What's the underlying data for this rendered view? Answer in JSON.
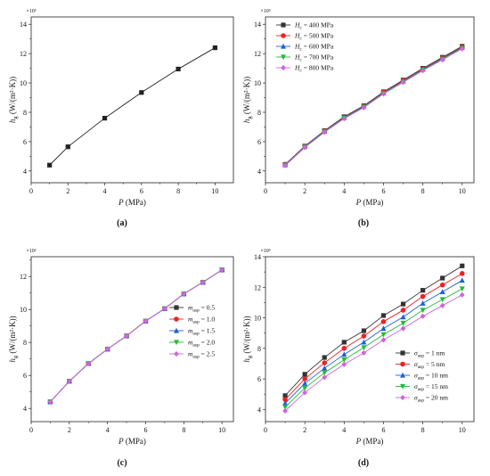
{
  "chart_data": [
    {
      "id": "a",
      "type": "line",
      "caption": "(a)",
      "exponent_label": "×10³",
      "xlabel_sym": "P",
      "xlabel_unit": " (MPa)",
      "ylabel_sym": "h",
      "ylabel_sub": "g",
      "ylabel_unit": " (W/(m²·K))",
      "xlim": [
        0,
        11
      ],
      "ylim": [
        3.2,
        14.5
      ],
      "xticks": [
        0,
        2,
        4,
        6,
        8,
        10
      ],
      "yticks": [
        4,
        6,
        8,
        10,
        12,
        14
      ],
      "legend": "none",
      "series": [
        {
          "name": "",
          "color": "#222222",
          "marker": "square",
          "x": [
            1,
            2,
            4,
            6,
            8,
            10
          ],
          "y": [
            4.4,
            5.65,
            7.6,
            9.35,
            10.95,
            12.4
          ]
        }
      ]
    },
    {
      "id": "b",
      "type": "line",
      "caption": "(b)",
      "exponent_label": "×10³",
      "xlabel_sym": "P",
      "xlabel_unit": " (MPa)",
      "ylabel_sym": "h",
      "ylabel_sub": "g",
      "ylabel_unit": " (W/(m²·K))",
      "xlim": [
        0,
        10.6
      ],
      "ylim": [
        3.2,
        14.5
      ],
      "xticks": [
        0,
        2,
        4,
        6,
        8,
        10
      ],
      "yticks": [
        4,
        6,
        8,
        10,
        12,
        14
      ],
      "legend": "top-left",
      "series": [
        {
          "name_sym": "H",
          "name_sub": "c",
          "name_rest": " = 400 MPa",
          "color": "#333333",
          "marker": "square",
          "x": [
            1,
            2,
            3,
            4,
            5,
            6,
            7,
            8,
            9,
            10
          ],
          "y": [
            4.45,
            5.7,
            6.75,
            7.7,
            8.45,
            9.4,
            10.2,
            11.0,
            11.75,
            12.5
          ]
        },
        {
          "name_sym": "H",
          "name_sub": "c",
          "name_rest": " = 500 MPa",
          "color": "#ee2222",
          "marker": "circle",
          "x": [
            1,
            2,
            3,
            4,
            5,
            6,
            7,
            8,
            9,
            10
          ],
          "y": [
            4.43,
            5.68,
            6.72,
            7.66,
            8.42,
            9.36,
            10.16,
            10.96,
            11.7,
            12.45
          ]
        },
        {
          "name_sym": "H",
          "name_sub": "c",
          "name_rest": " = 600 MPa",
          "color": "#1f5fd6",
          "marker": "triangle-up",
          "x": [
            1,
            2,
            3,
            4,
            5,
            6,
            7,
            8,
            9,
            10
          ],
          "y": [
            4.41,
            5.66,
            6.7,
            7.63,
            8.39,
            9.32,
            10.12,
            10.92,
            11.66,
            12.41
          ]
        },
        {
          "name_sym": "H",
          "name_sub": "c",
          "name_rest": " = 700 MPa",
          "color": "#22bb33",
          "marker": "triangle-down",
          "x": [
            1,
            2,
            3,
            4,
            5,
            6,
            7,
            8,
            9,
            10
          ],
          "y": [
            4.39,
            5.63,
            6.67,
            7.6,
            8.36,
            9.29,
            10.08,
            10.88,
            11.62,
            12.37
          ]
        },
        {
          "name_sym": "H",
          "name_sub": "c",
          "name_rest": " = 800 MPa",
          "color": "#cc66dd",
          "marker": "diamond",
          "x": [
            1,
            2,
            3,
            4,
            5,
            6,
            7,
            8,
            9,
            10
          ],
          "y": [
            4.37,
            5.6,
            6.64,
            7.57,
            8.32,
            9.25,
            10.04,
            10.84,
            11.58,
            12.33
          ]
        }
      ]
    },
    {
      "id": "c",
      "type": "line",
      "caption": "(c)",
      "exponent_label": "×10³",
      "xlabel_sym": "P",
      "xlabel_unit": " (MPa)",
      "ylabel_sym": "h",
      "ylabel_sub": "g",
      "ylabel_unit": " (W/(m²·K))",
      "xlim": [
        0,
        10.6
      ],
      "ylim": [
        3.2,
        13.2
      ],
      "xticks": [
        0,
        2,
        4,
        6,
        8,
        10
      ],
      "yticks": [
        4,
        6,
        8,
        10,
        12
      ],
      "legend": "right-center",
      "series": [
        {
          "name_sym": "m",
          "name_sub": "asp",
          "name_rest": " = 0.5",
          "color": "#333333",
          "marker": "square",
          "x": [
            1,
            2,
            3,
            4,
            5,
            6,
            7,
            8,
            9,
            10
          ],
          "y": [
            4.4,
            5.65,
            6.72,
            7.6,
            8.4,
            9.3,
            10.05,
            10.95,
            11.65,
            12.4
          ]
        },
        {
          "name_sym": "m",
          "name_sub": "asp",
          "name_rest": " = 1.0",
          "color": "#ee2222",
          "marker": "circle",
          "x": [
            1,
            2,
            3,
            4,
            5,
            6,
            7,
            8,
            9,
            10
          ],
          "y": [
            4.4,
            5.65,
            6.72,
            7.6,
            8.4,
            9.3,
            10.05,
            10.95,
            11.65,
            12.4
          ]
        },
        {
          "name_sym": "m",
          "name_sub": "asp",
          "name_rest": " = 1.5",
          "color": "#1f5fd6",
          "marker": "triangle-up",
          "x": [
            1,
            2,
            3,
            4,
            5,
            6,
            7,
            8,
            9,
            10
          ],
          "y": [
            4.4,
            5.65,
            6.72,
            7.6,
            8.4,
            9.3,
            10.05,
            10.95,
            11.65,
            12.4
          ]
        },
        {
          "name_sym": "m",
          "name_sub": "asp",
          "name_rest": " = 2.0",
          "color": "#22bb33",
          "marker": "triangle-down",
          "x": [
            1,
            2,
            3,
            4,
            5,
            6,
            7,
            8,
            9,
            10
          ],
          "y": [
            4.4,
            5.65,
            6.72,
            7.6,
            8.4,
            9.3,
            10.05,
            10.95,
            11.65,
            12.4
          ]
        },
        {
          "name_sym": "m",
          "name_sub": "asp",
          "name_rest": " = 2.5",
          "color": "#cc66dd",
          "marker": "diamond",
          "x": [
            1,
            2,
            3,
            4,
            5,
            6,
            7,
            8,
            9,
            10
          ],
          "y": [
            4.4,
            5.65,
            6.72,
            7.6,
            8.4,
            9.3,
            10.05,
            10.95,
            11.65,
            12.4
          ]
        }
      ]
    },
    {
      "id": "d",
      "type": "line",
      "caption": "(d)",
      "exponent_label": "×10³",
      "xlabel_sym": "P",
      "xlabel_unit": " (MPa)",
      "ylabel_sym": "h",
      "ylabel_sub": "g",
      "ylabel_unit": " (W/(m²·K))",
      "xlim": [
        0,
        10.6
      ],
      "ylim": [
        3.2,
        14.0
      ],
      "xticks": [
        0,
        2,
        4,
        6,
        8,
        10
      ],
      "yticks": [
        4,
        6,
        8,
        10,
        12,
        14
      ],
      "legend": "bottom-right",
      "series": [
        {
          "name_sym": "σ",
          "name_sub": "asp",
          "name_rest": " = 1 nm",
          "color": "#333333",
          "marker": "square",
          "x": [
            1,
            2,
            3,
            4,
            5,
            6,
            7,
            8,
            9,
            10
          ],
          "y": [
            4.9,
            6.3,
            7.4,
            8.4,
            9.15,
            10.15,
            10.9,
            11.8,
            12.6,
            13.4
          ]
        },
        {
          "name_sym": "σ",
          "name_sub": "asp",
          "name_rest": " = 5 nm",
          "color": "#ee2222",
          "marker": "circle",
          "x": [
            1,
            2,
            3,
            4,
            5,
            6,
            7,
            8,
            9,
            10
          ],
          "y": [
            4.65,
            6.0,
            7.05,
            8.0,
            8.8,
            9.75,
            10.5,
            11.4,
            12.15,
            12.9
          ]
        },
        {
          "name_sym": "σ",
          "name_sub": "asp",
          "name_rest": " = 10 nm",
          "color": "#1f5fd6",
          "marker": "triangle-up",
          "x": [
            1,
            2,
            3,
            4,
            5,
            6,
            7,
            8,
            9,
            10
          ],
          "y": [
            4.4,
            5.7,
            6.7,
            7.6,
            8.4,
            9.3,
            10.05,
            10.95,
            11.7,
            12.45
          ]
        },
        {
          "name_sym": "σ",
          "name_sub": "asp",
          "name_rest": " = 15 nm",
          "color": "#22bb33",
          "marker": "triangle-down",
          "x": [
            1,
            2,
            3,
            4,
            5,
            6,
            7,
            8,
            9,
            10
          ],
          "y": [
            4.15,
            5.4,
            6.4,
            7.25,
            8.05,
            8.9,
            9.65,
            10.5,
            11.2,
            11.9
          ]
        },
        {
          "name_sym": "σ",
          "name_sub": "asp",
          "name_rest": " = 20 nm",
          "color": "#cc66dd",
          "marker": "diamond",
          "x": [
            1,
            2,
            3,
            4,
            5,
            6,
            7,
            8,
            9,
            10
          ],
          "y": [
            3.9,
            5.1,
            6.1,
            6.95,
            7.7,
            8.55,
            9.3,
            10.1,
            10.8,
            11.5
          ]
        }
      ]
    }
  ]
}
